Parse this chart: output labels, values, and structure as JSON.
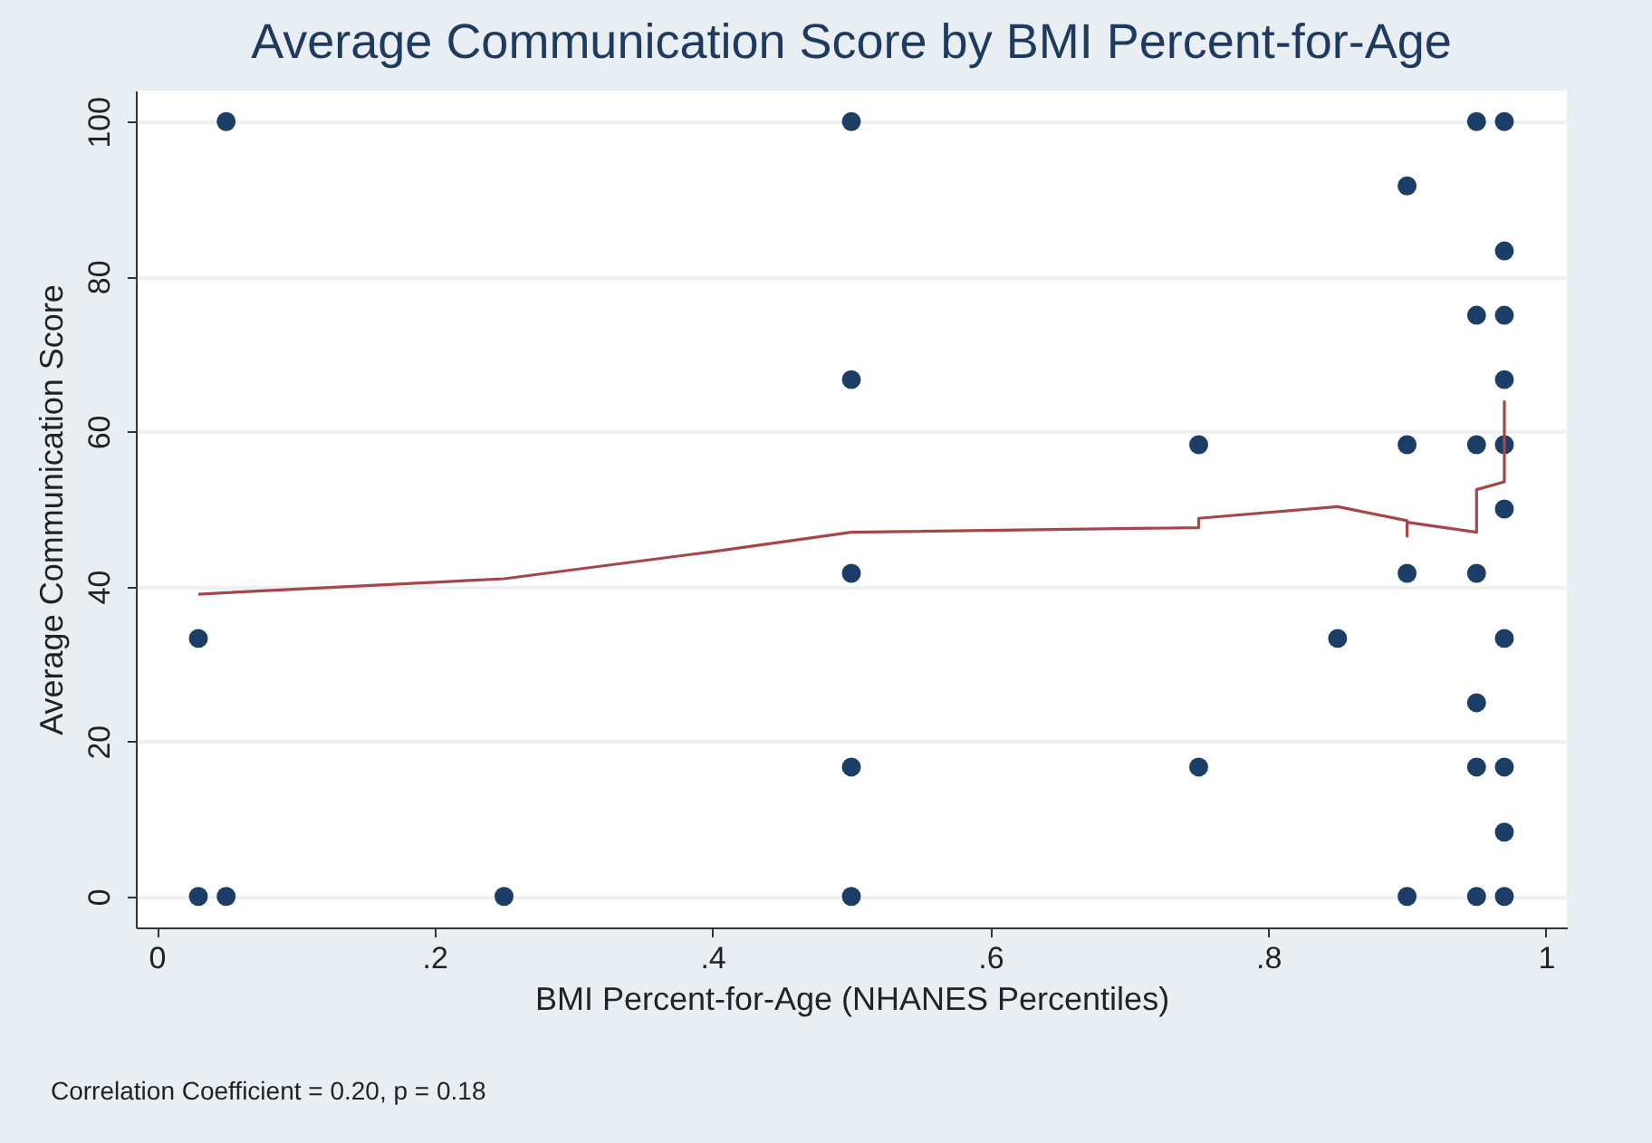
{
  "chart_data": {
    "type": "scatter",
    "title": "Average Communication Score by BMI Percent-for-Age",
    "xlabel": "BMI Percent-for-Age (NHANES Percentiles)",
    "ylabel": "Average Communication Score",
    "annotations": [
      "Correlation Coefficient = 0.20, p = 0.18"
    ],
    "series": [
      {
        "color": "#1c3d66",
        "marker": "circle",
        "x": [
          0.03,
          0.03,
          0.05,
          0.05,
          0.25,
          0.5,
          0.5,
          0.5,
          0.5,
          0.5,
          0.75,
          0.75,
          0.85,
          0.9,
          0.9,
          0.9,
          0.9,
          0.95,
          0.95,
          0.95,
          0.95,
          0.95,
          0.95,
          0.95,
          0.97,
          0.97,
          0.97,
          0.97,
          0.97,
          0.97,
          0.97,
          0.97,
          0.97,
          0.97
        ],
        "values": [
          33.3,
          0,
          100,
          0,
          0,
          100,
          66.7,
          41.7,
          16.7,
          0,
          58.3,
          16.7,
          33.3,
          91.7,
          58.3,
          41.7,
          0,
          100,
          75,
          58.3,
          41.7,
          25,
          16.7,
          0,
          100,
          83.3,
          75,
          66.7,
          58.3,
          50,
          33.3,
          16.7,
          8.3,
          0
        ]
      },
      {
        "type": "line",
        "marker": "none",
        "color": "#a4474b",
        "x": [
          0.03,
          0.05,
          0.25,
          0.4,
          0.5,
          0.75,
          0.75,
          0.85,
          0.9,
          0.9,
          0.9,
          0.95,
          0.95,
          0.97,
          0.97
        ],
        "values": [
          39,
          39.2,
          41,
          44.5,
          47,
          47.6,
          48.8,
          50.3,
          48.5,
          46.5,
          48.3,
          47,
          52.5,
          53.5,
          64
        ]
      }
    ],
    "xlim": [
      -0.015,
      1.015
    ],
    "xticks": [
      {
        "value": 0,
        "label": "0"
      },
      {
        "value": 0.2,
        "label": ".2"
      },
      {
        "value": 0.4,
        "label": ".4"
      },
      {
        "value": 0.6,
        "label": ".6"
      },
      {
        "value": 0.8,
        "label": ".8"
      },
      {
        "value": 1,
        "label": "1"
      }
    ],
    "ylim": [
      -4,
      104
    ],
    "yticks": [
      0,
      20,
      40,
      60,
      80,
      100
    ],
    "grid": "y",
    "line_style": "solid"
  }
}
